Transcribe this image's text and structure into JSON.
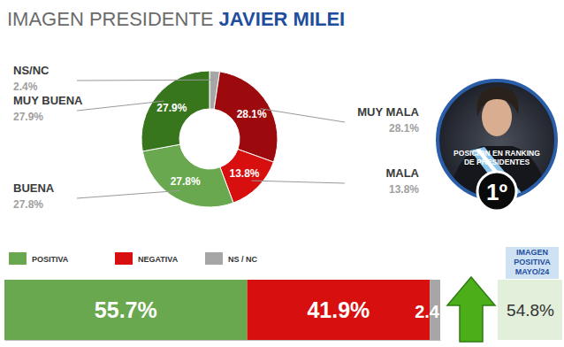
{
  "chart_data": [
    {
      "type": "pie",
      "title": "IMAGEN PRESIDENTE JAVIER MILEI",
      "categories": [
        "NS/NC",
        "MUY MALA",
        "MALA",
        "BUENA",
        "MUY BUENA"
      ],
      "values": [
        2.4,
        28.1,
        13.8,
        27.8,
        27.9
      ],
      "value_labels": [
        "2.4%",
        "28.1%",
        "13.8%",
        "27.8%",
        "27.9%"
      ],
      "colors": [
        "#a6a6a6",
        "#9c0a0e",
        "#d80f0f",
        "#6aa84f",
        "#38761d"
      ],
      "data_labels": true,
      "annotations": [
        "POSICION EN RANKING DE PRESIDENTES"
      ],
      "rank": 1,
      "rank_label": "1º"
    },
    {
      "type": "bar",
      "orientation": "horizontal",
      "stacked": true,
      "categories": [
        null
      ],
      "series": [
        {
          "name": "POSITIVA",
          "color": "#6aa84f",
          "values": [
            55.7
          ],
          "value_labels": [
            "55.7%"
          ]
        },
        {
          "name": "NEGATIVA",
          "color": "#d80f0f",
          "values": [
            41.9
          ],
          "value_labels": [
            "41.9%"
          ]
        },
        {
          "name": "NS / NC",
          "color": "#a6a6a6",
          "values": [
            2.4
          ],
          "value_labels": [
            "2.4"
          ]
        }
      ],
      "xlim": [
        0,
        100
      ],
      "tick_labels": false,
      "data_labels": true,
      "legend": "top left",
      "annotations": [
        "IMAGEN POSITIVA MAYO/24"
      ],
      "previous_value": 54.8,
      "previous_label": "54.8%"
    }
  ]
}
